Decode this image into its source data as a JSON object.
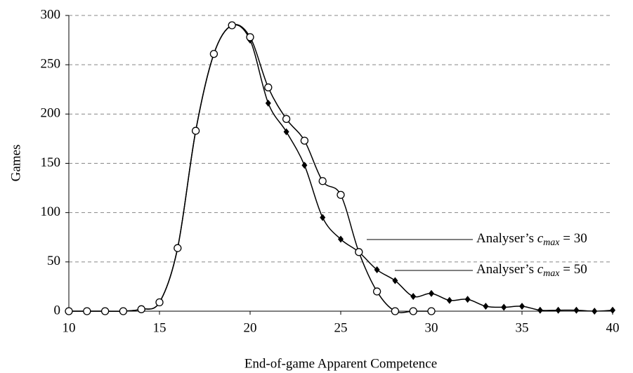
{
  "chart_data": {
    "type": "line",
    "xlabel": "End-of-game Apparent Competence",
    "ylabel": "Games",
    "xlim": [
      10,
      40
    ],
    "xticks": [
      10,
      15,
      20,
      25,
      30,
      35,
      40
    ],
    "ylim": [
      0,
      300
    ],
    "yticks": [
      0,
      50,
      100,
      150,
      200,
      250,
      300
    ],
    "grid": true,
    "x": [
      10,
      11,
      12,
      13,
      14,
      15,
      16,
      17,
      18,
      19,
      20,
      21,
      22,
      23,
      24,
      25,
      26,
      27,
      28,
      29,
      30,
      31,
      32,
      33,
      34,
      35,
      36,
      37,
      38,
      39,
      40
    ],
    "series": [
      {
        "name": "Analyser’s cmax = 30",
        "color": "#000000",
        "marker": "circle",
        "values": [
          0,
          0,
          0,
          0,
          2,
          9,
          64,
          183,
          261,
          290,
          278,
          227,
          195,
          173,
          132,
          118,
          60,
          20,
          0,
          0,
          0,
          null,
          null,
          null,
          null,
          null,
          null,
          null,
          null,
          null,
          null
        ]
      },
      {
        "name": "Analyser’s cmax = 50",
        "color": "#000000",
        "marker": "diamond",
        "values": [
          0,
          0,
          0,
          0,
          2,
          9,
          64,
          183,
          261,
          290,
          275,
          211,
          182,
          148,
          95,
          73,
          60,
          42,
          31,
          15,
          18,
          11,
          12,
          5,
          4,
          5,
          1,
          1,
          1,
          0,
          1
        ]
      }
    ]
  }
}
